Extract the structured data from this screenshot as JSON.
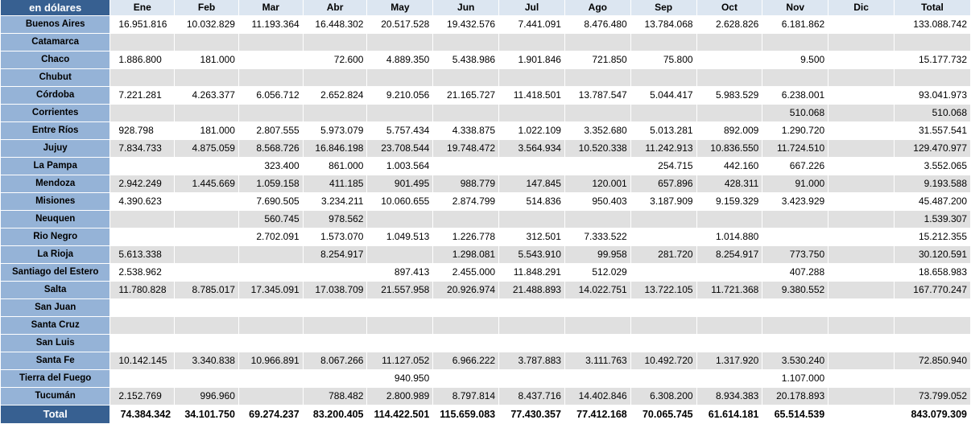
{
  "corner_label": "en dólares",
  "months": [
    "Ene",
    "Feb",
    "Mar",
    "Abr",
    "May",
    "Jun",
    "Jul",
    "Ago",
    "Sep",
    "Oct",
    "Nov",
    "Dic",
    "Total"
  ],
  "rows": [
    {
      "province": "Buenos Aires",
      "values": [
        "16.951.816",
        "10.032.829",
        "11.193.364",
        "16.448.302",
        "20.517.528",
        "19.432.576",
        "7.441.091",
        "8.476.480",
        "13.784.068",
        "2.628.826",
        "6.181.862",
        "",
        "133.088.742"
      ]
    },
    {
      "province": "Catamarca",
      "values": [
        "",
        "",
        "",
        "",
        "",
        "",
        "",
        "",
        "",
        "",
        "",
        "",
        ""
      ]
    },
    {
      "province": "Chaco",
      "values": [
        "1.886.800",
        "181.000",
        "",
        "72.600",
        "4.889.350",
        "5.438.986",
        "1.901.846",
        "721.850",
        "75.800",
        "",
        "9.500",
        "",
        "15.177.732"
      ]
    },
    {
      "province": "Chubut",
      "values": [
        "",
        "",
        "",
        "",
        "",
        "",
        "",
        "",
        "",
        "",
        "",
        "",
        ""
      ]
    },
    {
      "province": "Córdoba",
      "values": [
        "7.221.281",
        "4.263.377",
        "6.056.712",
        "2.652.824",
        "9.210.056",
        "21.165.727",
        "11.418.501",
        "13.787.547",
        "5.044.417",
        "5.983.529",
        "6.238.001",
        "",
        "93.041.973"
      ]
    },
    {
      "province": "Corrientes",
      "values": [
        "",
        "",
        "",
        "",
        "",
        "",
        "",
        "",
        "",
        "",
        "510.068",
        "",
        "510.068"
      ]
    },
    {
      "province": "Entre Ríos",
      "values": [
        "928.798",
        "181.000",
        "2.807.555",
        "5.973.079",
        "5.757.434",
        "4.338.875",
        "1.022.109",
        "3.352.680",
        "5.013.281",
        "892.009",
        "1.290.720",
        "",
        "31.557.541"
      ]
    },
    {
      "province": "Jujuy",
      "values": [
        "7.834.733",
        "4.875.059",
        "8.568.726",
        "16.846.198",
        "23.708.544",
        "19.748.472",
        "3.564.934",
        "10.520.338",
        "11.242.913",
        "10.836.550",
        "11.724.510",
        "",
        "129.470.977"
      ]
    },
    {
      "province": "La Pampa",
      "values": [
        "",
        "",
        "323.400",
        "861.000",
        "1.003.564",
        "",
        "",
        "",
        "254.715",
        "442.160",
        "667.226",
        "",
        "3.552.065"
      ]
    },
    {
      "province": "Mendoza",
      "values": [
        "2.942.249",
        "1.445.669",
        "1.059.158",
        "411.185",
        "901.495",
        "988.779",
        "147.845",
        "120.001",
        "657.896",
        "428.311",
        "91.000",
        "",
        "9.193.588"
      ]
    },
    {
      "province": "Misiones",
      "values": [
        "4.390.623",
        "",
        "7.690.505",
        "3.234.211",
        "10.060.655",
        "2.874.799",
        "514.836",
        "950.403",
        "3.187.909",
        "9.159.329",
        "3.423.929",
        "",
        "45.487.200"
      ]
    },
    {
      "province": "Neuquen",
      "values": [
        "",
        "",
        "560.745",
        "978.562",
        "",
        "",
        "",
        "",
        "",
        "",
        "",
        "",
        "1.539.307"
      ]
    },
    {
      "province": "Rio Negro",
      "values": [
        "",
        "",
        "2.702.091",
        "1.573.070",
        "1.049.513",
        "1.226.778",
        "312.501",
        "7.333.522",
        "",
        "1.014.880",
        "",
        "",
        "15.212.355"
      ]
    },
    {
      "province": "La Rioja",
      "values": [
        "5.613.338",
        "",
        "",
        "8.254.917",
        "",
        "1.298.081",
        "5.543.910",
        "99.958",
        "281.720",
        "8.254.917",
        "773.750",
        "",
        "30.120.591"
      ]
    },
    {
      "province": "Santiago del Estero",
      "values": [
        "2.538.962",
        "",
        "",
        "",
        "897.413",
        "2.455.000",
        "11.848.291",
        "512.029",
        "",
        "",
        "407.288",
        "",
        "18.658.983"
      ]
    },
    {
      "province": "Salta",
      "values": [
        "11.780.828",
        "8.785.017",
        "17.345.091",
        "17.038.709",
        "21.557.958",
        "20.926.974",
        "21.488.893",
        "14.022.751",
        "13.722.105",
        "11.721.368",
        "9.380.552",
        "",
        "167.770.247"
      ]
    },
    {
      "province": "San Juan",
      "values": [
        "",
        "",
        "",
        "",
        "",
        "",
        "",
        "",
        "",
        "",
        "",
        "",
        ""
      ]
    },
    {
      "province": "Santa Cruz",
      "values": [
        "",
        "",
        "",
        "",
        "",
        "",
        "",
        "",
        "",
        "",
        "",
        "",
        ""
      ]
    },
    {
      "province": "San Luis",
      "values": [
        "",
        "",
        "",
        "",
        "",
        "",
        "",
        "",
        "",
        "",
        "",
        "",
        ""
      ]
    },
    {
      "province": "Santa Fe",
      "values": [
        "10.142.145",
        "3.340.838",
        "10.966.891",
        "8.067.266",
        "11.127.052",
        "6.966.222",
        "3.787.883",
        "3.111.763",
        "10.492.720",
        "1.317.920",
        "3.530.240",
        "",
        "72.850.940"
      ]
    },
    {
      "province": "Tierra del Fuego",
      "values": [
        "",
        "",
        "",
        "",
        "940.950",
        "",
        "",
        "",
        "",
        "",
        "1.107.000",
        "",
        ""
      ]
    },
    {
      "province": "Tucumán",
      "values": [
        "2.152.769",
        "996.960",
        "",
        "788.482",
        "2.800.989",
        "8.797.814",
        "8.437.716",
        "14.402.846",
        "6.308.200",
        "8.934.383",
        "20.178.893",
        "",
        "73.799.052"
      ]
    }
  ],
  "total_row": {
    "label": "Total",
    "values": [
      "74.384.342",
      "34.101.750",
      "69.274.237",
      "83.200.405",
      "114.422.501",
      "115.659.083",
      "77.430.357",
      "77.412.168",
      "70.065.745",
      "61.614.181",
      "65.514.539",
      "",
      "843.079.309"
    ]
  }
}
